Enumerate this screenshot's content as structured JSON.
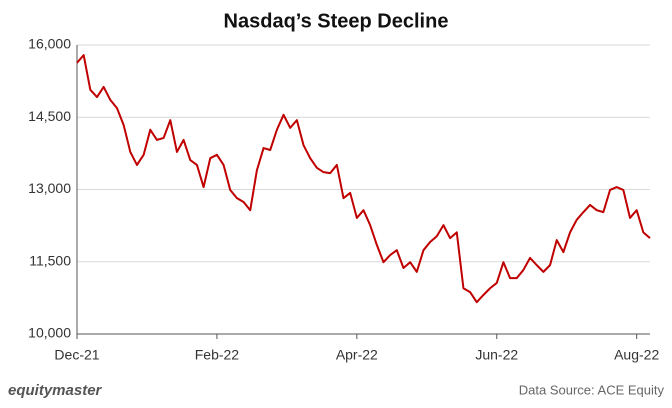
{
  "chart_data": {
    "type": "line",
    "title": "Nasdaq’s Steep Decline",
    "categories": [
      "Dec-21",
      null,
      null,
      null,
      null,
      null,
      null,
      null,
      null,
      null,
      null,
      null,
      null,
      null,
      null,
      null,
      null,
      null,
      null,
      null,
      null,
      "Feb-22",
      null,
      null,
      null,
      null,
      null,
      null,
      null,
      null,
      null,
      null,
      null,
      null,
      null,
      null,
      null,
      null,
      null,
      null,
      null,
      null,
      "Apr-22",
      null,
      null,
      null,
      null,
      null,
      null,
      null,
      null,
      null,
      null,
      null,
      null,
      null,
      null,
      null,
      null,
      null,
      null,
      null,
      null,
      "Jun-22",
      null,
      null,
      null,
      null,
      null,
      null,
      null,
      null,
      null,
      null,
      null,
      null,
      null,
      null,
      null,
      null,
      null,
      null,
      null,
      null,
      "Aug-22",
      null,
      null
    ],
    "series": [
      {
        "name": "Nasdaq",
        "color": "#c00000",
        "values": [
          15630,
          15790,
          15070,
          14920,
          15130,
          14860,
          14690,
          14340,
          13780,
          13510,
          13720,
          14240,
          14030,
          14070,
          14440,
          13780,
          14030,
          13610,
          13510,
          13050,
          13650,
          13720,
          13510,
          12990,
          12820,
          12740,
          12570,
          13400,
          13860,
          13820,
          14240,
          14550,
          14280,
          14440,
          13920,
          13650,
          13450,
          13360,
          13340,
          13510,
          12820,
          12930,
          12410,
          12570,
          12260,
          11850,
          11490,
          11640,
          11740,
          11370,
          11490,
          11290,
          11740,
          11910,
          12030,
          12260,
          11990,
          12110,
          10950,
          10870,
          10660,
          10810,
          10950,
          11060,
          11490,
          11160,
          11160,
          11330,
          11580,
          11430,
          11290,
          11430,
          11950,
          11700,
          12110,
          12370,
          12530,
          12680,
          12570,
          12530,
          12990,
          13050,
          12990,
          12410,
          12570,
          12110,
          11990
        ]
      }
    ],
    "ylim": [
      10000,
      16000
    ],
    "yticks": [
      {
        "value": 10000,
        "label": "10,000"
      },
      {
        "value": 11500,
        "label": "11,500"
      },
      {
        "value": 13000,
        "label": "13,000"
      },
      {
        "value": 14500,
        "label": "14,500"
      },
      {
        "value": 16000,
        "label": "16,000"
      }
    ],
    "grid": true,
    "brand": "equitymaster",
    "source": "Data Source: ACE Equity"
  }
}
